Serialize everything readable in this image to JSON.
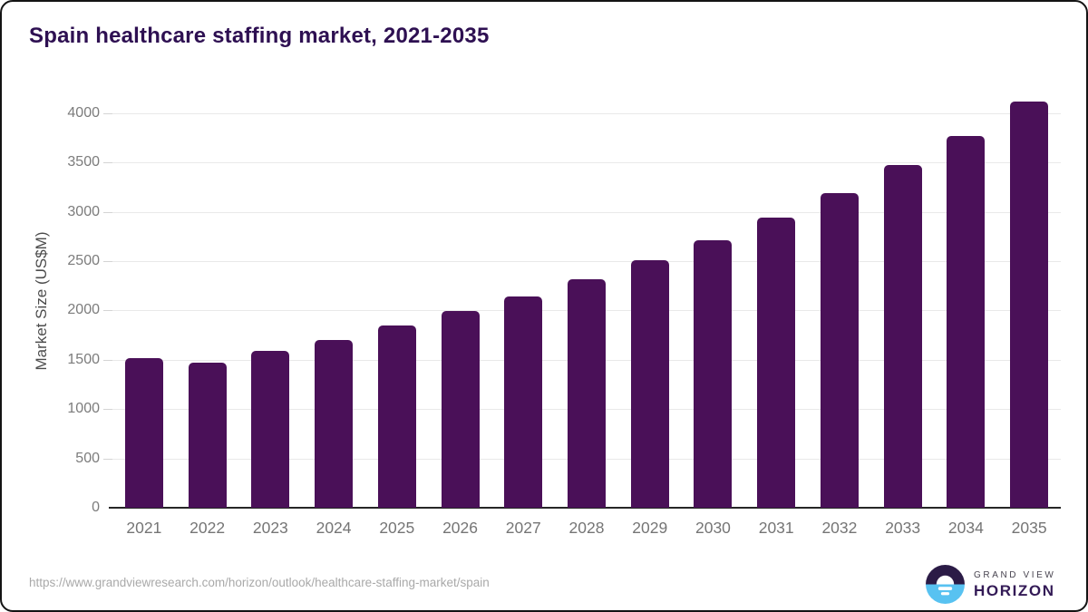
{
  "chart_data": {
    "type": "bar",
    "title": "Spain healthcare staffing market, 2021-2035",
    "categories": [
      "2021",
      "2022",
      "2023",
      "2024",
      "2025",
      "2026",
      "2027",
      "2028",
      "2029",
      "2030",
      "2031",
      "2032",
      "2033",
      "2034",
      "2035"
    ],
    "values": [
      1516,
      1471,
      1587,
      1700,
      1845,
      1992,
      2145,
      2313,
      2513,
      2715,
      2941,
      3190,
      3471,
      3772,
      4113
    ],
    "xlabel": "",
    "ylabel": "Market Size (US$M)",
    "ylim": [
      0,
      4200
    ],
    "yticks": [
      0,
      500,
      1000,
      1500,
      2000,
      2500,
      3000,
      3500,
      4000
    ],
    "grid": "horizontal",
    "legend": "none",
    "bar_color": "#4a1058"
  },
  "colors": {
    "title": "#2e1052",
    "bar": "#4a1058",
    "gridline": "#e9e9e9",
    "axis_line": "#262626",
    "tick_label": "#7c7c7c",
    "axis_title": "#4c4c4c",
    "url_text": "#a9a9a9",
    "logo_navy": "#2b1b46",
    "logo_blue": "#58c2f1"
  },
  "footer": {
    "source_url": "https://www.grandviewresearch.com/horizon/outlook/healthcare-staffing-market/spain",
    "logo": {
      "line1": "GRAND VIEW",
      "line2": "HORIZON",
      "icon": "horizon-sun-icon"
    }
  }
}
